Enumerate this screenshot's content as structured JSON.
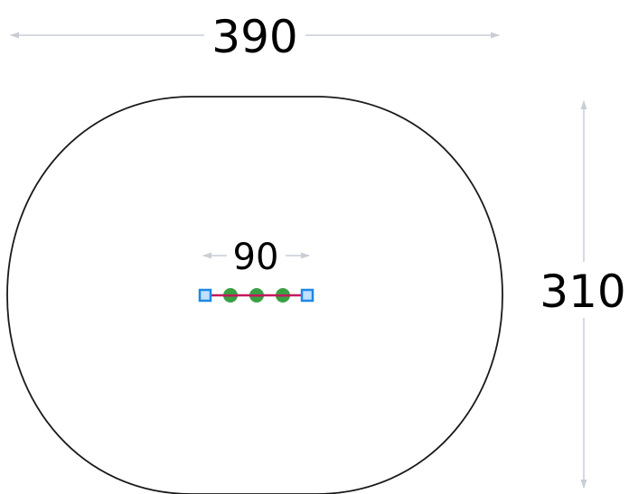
{
  "dimensions": {
    "width_label": "390",
    "height_label": "310",
    "inner_span_label": "90"
  },
  "colors": {
    "outline": "#1a1a1a",
    "dimension_arrow": "#c8cdd6",
    "connector_line": "#c2185b",
    "post": "#3aa043",
    "post_core": "#2e7d32",
    "end_marker": "#1e88e5",
    "end_marker_fill": "#bfe0ff"
  },
  "icons": {
    "end_marker": "square-marker-icon",
    "post": "round-post-icon"
  }
}
